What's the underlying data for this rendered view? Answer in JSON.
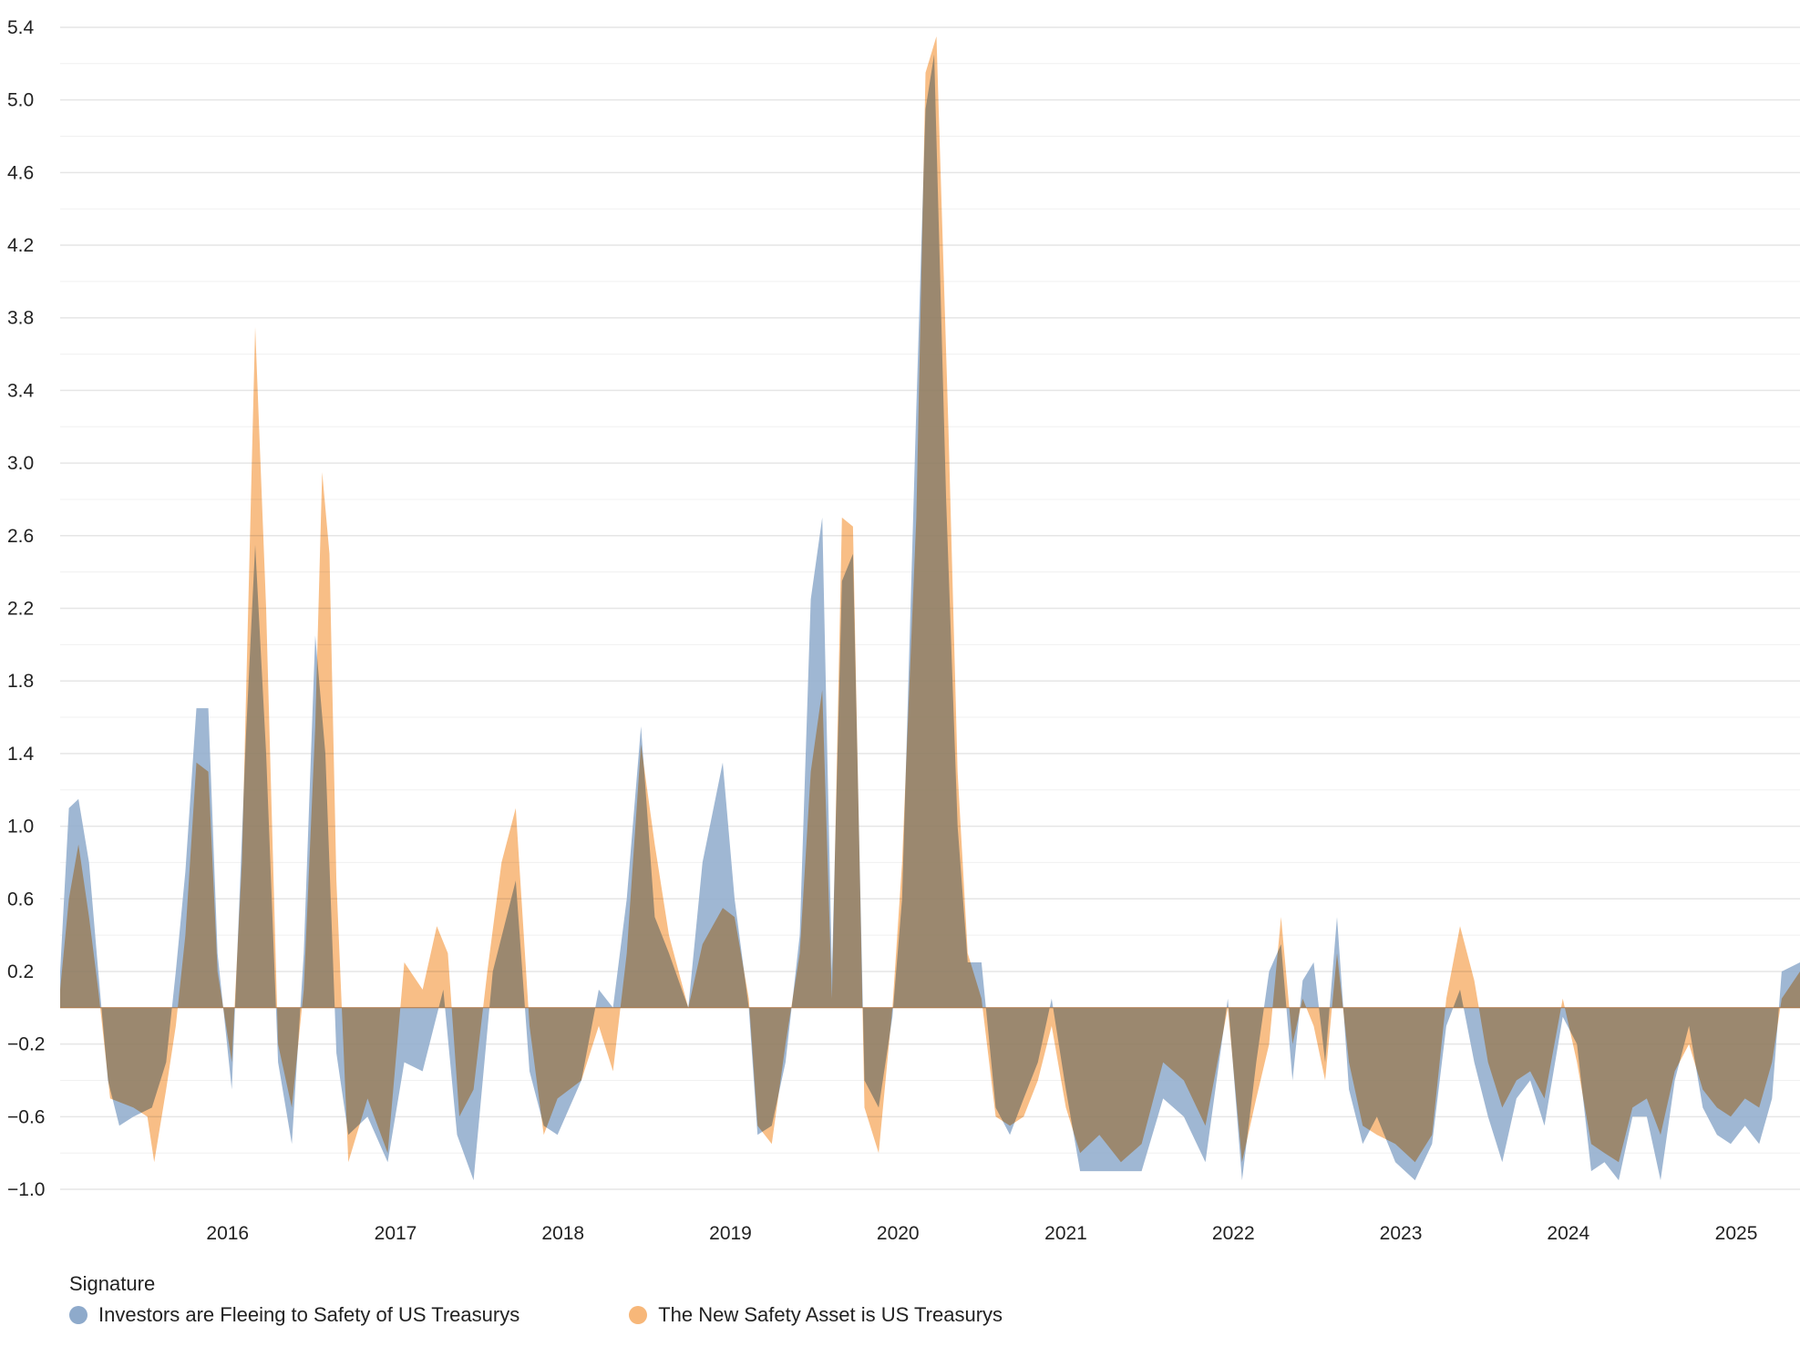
{
  "chart_data": {
    "type": "area",
    "title": "",
    "xlabel": "",
    "ylabel": "",
    "ylim": [
      -1.05,
      5.45
    ],
    "xlim": [
      "2015-01-01",
      "2025-05-20"
    ],
    "y_ticks": [
      -1.0,
      -0.6,
      -0.2,
      0.2,
      0.6,
      1.0,
      1.4,
      1.8,
      2.2,
      2.6,
      3.0,
      3.4,
      3.8,
      4.2,
      4.6,
      5.0,
      5.4
    ],
    "y_tick_labels": [
      "−1.0",
      "−0.6",
      "−0.2",
      "0.2",
      "0.6",
      "1.0",
      "1.4",
      "1.8",
      "2.2",
      "2.6",
      "3.0",
      "3.4",
      "3.8",
      "4.2",
      "4.6",
      "5.0",
      "5.4"
    ],
    "x_ticks": [
      "2016",
      "2017",
      "2018",
      "2019",
      "2020",
      "2021",
      "2022",
      "2023",
      "2024",
      "2025"
    ],
    "grid": "horizontal",
    "legend": {
      "title": "Signature",
      "placement": "bottom-left"
    },
    "series": [
      {
        "name": "Investors are Fleeing to Safety of US Treasurys",
        "color": "#8eaacb",
        "points": [
          [
            "2015-01-01",
            0.2
          ],
          [
            "2015-01-20",
            1.1
          ],
          [
            "2015-02-10",
            1.15
          ],
          [
            "2015-03-05",
            0.8
          ],
          [
            "2015-03-25",
            0.2
          ],
          [
            "2015-04-15",
            -0.4
          ],
          [
            "2015-05-10",
            -0.65
          ],
          [
            "2015-06-10",
            -0.6
          ],
          [
            "2015-07-20",
            -0.55
          ],
          [
            "2015-08-20",
            -0.3
          ],
          [
            "2015-09-10",
            0.2
          ],
          [
            "2015-10-01",
            0.75
          ],
          [
            "2015-10-25",
            1.65
          ],
          [
            "2015-11-20",
            1.65
          ],
          [
            "2015-12-10",
            0.3
          ],
          [
            "2016-01-10",
            -0.45
          ],
          [
            "2016-02-10",
            1.5
          ],
          [
            "2016-03-01",
            2.55
          ],
          [
            "2016-03-25",
            1.4
          ],
          [
            "2016-04-20",
            -0.3
          ],
          [
            "2016-05-20",
            -0.75
          ],
          [
            "2016-06-15",
            0.3
          ],
          [
            "2016-07-10",
            2.05
          ],
          [
            "2016-08-01",
            1.4
          ],
          [
            "2016-08-25",
            -0.25
          ],
          [
            "2016-09-20",
            -0.7
          ],
          [
            "2016-11-01",
            -0.6
          ],
          [
            "2016-12-15",
            -0.85
          ],
          [
            "2017-01-20",
            -0.3
          ],
          [
            "2017-03-01",
            -0.35
          ],
          [
            "2017-04-15",
            0.1
          ],
          [
            "2017-05-15",
            -0.7
          ],
          [
            "2017-06-20",
            -0.95
          ],
          [
            "2017-08-01",
            0.2
          ],
          [
            "2017-09-20",
            0.7
          ],
          [
            "2017-10-20",
            -0.35
          ],
          [
            "2017-11-20",
            -0.65
          ],
          [
            "2017-12-20",
            -0.7
          ],
          [
            "2018-02-10",
            -0.4
          ],
          [
            "2018-03-20",
            0.1
          ],
          [
            "2018-04-20",
            0.0
          ],
          [
            "2018-05-20",
            0.6
          ],
          [
            "2018-06-20",
            1.55
          ],
          [
            "2018-07-20",
            0.5
          ],
          [
            "2018-08-20",
            0.3
          ],
          [
            "2018-10-01",
            0.0
          ],
          [
            "2018-11-01",
            0.8
          ],
          [
            "2018-12-15",
            1.35
          ],
          [
            "2019-01-10",
            0.6
          ],
          [
            "2019-02-10",
            0.0
          ],
          [
            "2019-03-01",
            -0.7
          ],
          [
            "2019-04-01",
            -0.65
          ],
          [
            "2019-05-01",
            -0.3
          ],
          [
            "2019-06-01",
            0.4
          ],
          [
            "2019-06-25",
            2.25
          ],
          [
            "2019-07-20",
            2.7
          ],
          [
            "2019-08-10",
            0.2
          ],
          [
            "2019-09-01",
            2.35
          ],
          [
            "2019-09-25",
            2.5
          ],
          [
            "2019-10-20",
            -0.4
          ],
          [
            "2019-11-20",
            -0.55
          ],
          [
            "2019-12-20",
            -0.05
          ],
          [
            "2020-01-10",
            0.6
          ],
          [
            "2020-02-10",
            3.3
          ],
          [
            "2020-03-01",
            4.95
          ],
          [
            "2020-03-20",
            5.25
          ],
          [
            "2020-04-15",
            2.8
          ],
          [
            "2020-05-10",
            1.0
          ],
          [
            "2020-06-01",
            0.25
          ],
          [
            "2020-07-01",
            0.25
          ],
          [
            "2020-08-01",
            -0.55
          ],
          [
            "2020-09-01",
            -0.7
          ],
          [
            "2020-10-01",
            -0.5
          ],
          [
            "2020-11-01",
            -0.3
          ],
          [
            "2020-12-01",
            0.05
          ],
          [
            "2021-01-01",
            -0.45
          ],
          [
            "2021-02-01",
            -0.9
          ],
          [
            "2021-03-15",
            -0.9
          ],
          [
            "2021-05-01",
            -0.9
          ],
          [
            "2021-06-15",
            -0.9
          ],
          [
            "2021-08-01",
            -0.5
          ],
          [
            "2021-09-15",
            -0.6
          ],
          [
            "2021-11-01",
            -0.85
          ],
          [
            "2021-12-20",
            0.05
          ],
          [
            "2022-01-20",
            -0.95
          ],
          [
            "2022-02-20",
            -0.3
          ],
          [
            "2022-03-20",
            0.2
          ],
          [
            "2022-04-15",
            0.35
          ],
          [
            "2022-05-10",
            -0.4
          ],
          [
            "2022-06-01",
            0.15
          ],
          [
            "2022-06-25",
            0.25
          ],
          [
            "2022-07-20",
            -0.3
          ],
          [
            "2022-08-15",
            0.5
          ],
          [
            "2022-09-10",
            -0.45
          ],
          [
            "2022-10-10",
            -0.75
          ],
          [
            "2022-11-10",
            -0.6
          ],
          [
            "2022-12-20",
            -0.85
          ],
          [
            "2023-02-01",
            -0.95
          ],
          [
            "2023-03-10",
            -0.75
          ],
          [
            "2023-04-10",
            -0.1
          ],
          [
            "2023-05-10",
            0.1
          ],
          [
            "2023-06-10",
            -0.3
          ],
          [
            "2023-07-10",
            -0.6
          ],
          [
            "2023-08-10",
            -0.85
          ],
          [
            "2023-09-10",
            -0.5
          ],
          [
            "2023-10-10",
            -0.4
          ],
          [
            "2023-11-10",
            -0.65
          ],
          [
            "2023-12-20",
            -0.05
          ],
          [
            "2024-01-20",
            -0.2
          ],
          [
            "2024-02-20",
            -0.9
          ],
          [
            "2024-03-20",
            -0.85
          ],
          [
            "2024-04-20",
            -0.95
          ],
          [
            "2024-05-20",
            -0.6
          ],
          [
            "2024-06-20",
            -0.6
          ],
          [
            "2024-07-20",
            -0.95
          ],
          [
            "2024-08-20",
            -0.4
          ],
          [
            "2024-09-20",
            -0.1
          ],
          [
            "2024-10-20",
            -0.55
          ],
          [
            "2024-11-20",
            -0.7
          ],
          [
            "2024-12-20",
            -0.75
          ],
          [
            "2025-01-20",
            -0.65
          ],
          [
            "2025-02-20",
            -0.75
          ],
          [
            "2025-03-20",
            -0.5
          ],
          [
            "2025-04-10",
            0.2
          ],
          [
            "2025-05-20",
            0.25
          ]
        ]
      },
      {
        "name": "The New Safety Asset is US Treasurys",
        "color": "#f7b779",
        "points": [
          [
            "2015-01-01",
            0.1
          ],
          [
            "2015-01-20",
            0.6
          ],
          [
            "2015-02-10",
            0.9
          ],
          [
            "2015-03-05",
            0.5
          ],
          [
            "2015-03-25",
            0.1
          ],
          [
            "2015-04-20",
            -0.5
          ],
          [
            "2015-06-10",
            -0.55
          ],
          [
            "2015-07-10",
            -0.6
          ],
          [
            "2015-07-25",
            -0.85
          ],
          [
            "2015-08-20",
            -0.45
          ],
          [
            "2015-09-10",
            -0.1
          ],
          [
            "2015-10-01",
            0.4
          ],
          [
            "2015-10-25",
            1.35
          ],
          [
            "2015-11-20",
            1.3
          ],
          [
            "2015-12-10",
            0.2
          ],
          [
            "2016-01-10",
            -0.3
          ],
          [
            "2016-02-01",
            0.8
          ],
          [
            "2016-03-01",
            3.75
          ],
          [
            "2016-03-25",
            2.2
          ],
          [
            "2016-04-20",
            -0.2
          ],
          [
            "2016-05-20",
            -0.55
          ],
          [
            "2016-06-15",
            0.1
          ],
          [
            "2016-07-10",
            1.55
          ],
          [
            "2016-07-25",
            2.95
          ],
          [
            "2016-08-10",
            2.5
          ],
          [
            "2016-08-25",
            0.7
          ],
          [
            "2016-09-20",
            -0.85
          ],
          [
            "2016-11-01",
            -0.5
          ],
          [
            "2016-12-15",
            -0.8
          ],
          [
            "2017-01-20",
            0.25
          ],
          [
            "2017-03-01",
            0.1
          ],
          [
            "2017-04-01",
            0.45
          ],
          [
            "2017-04-25",
            0.3
          ],
          [
            "2017-05-20",
            -0.6
          ],
          [
            "2017-06-20",
            -0.45
          ],
          [
            "2017-07-20",
            0.2
          ],
          [
            "2017-08-20",
            0.8
          ],
          [
            "2017-09-20",
            1.1
          ],
          [
            "2017-10-20",
            -0.1
          ],
          [
            "2017-11-20",
            -0.7
          ],
          [
            "2017-12-20",
            -0.5
          ],
          [
            "2018-02-10",
            -0.4
          ],
          [
            "2018-03-20",
            -0.1
          ],
          [
            "2018-04-20",
            -0.35
          ],
          [
            "2018-05-20",
            0.3
          ],
          [
            "2018-06-20",
            1.45
          ],
          [
            "2018-07-20",
            0.9
          ],
          [
            "2018-08-20",
            0.4
          ],
          [
            "2018-10-01",
            0.0
          ],
          [
            "2018-11-01",
            0.35
          ],
          [
            "2018-12-15",
            0.55
          ],
          [
            "2019-01-10",
            0.5
          ],
          [
            "2019-02-10",
            0.05
          ],
          [
            "2019-03-01",
            -0.65
          ],
          [
            "2019-04-01",
            -0.75
          ],
          [
            "2019-05-01",
            -0.2
          ],
          [
            "2019-06-01",
            0.3
          ],
          [
            "2019-06-25",
            1.3
          ],
          [
            "2019-07-20",
            1.75
          ],
          [
            "2019-08-10",
            0.05
          ],
          [
            "2019-09-01",
            2.7
          ],
          [
            "2019-09-25",
            2.65
          ],
          [
            "2019-10-20",
            -0.55
          ],
          [
            "2019-11-20",
            -0.8
          ],
          [
            "2019-12-20",
            0.0
          ],
          [
            "2020-01-10",
            0.8
          ],
          [
            "2020-02-10",
            2.7
          ],
          [
            "2020-03-01",
            5.15
          ],
          [
            "2020-03-25",
            5.35
          ],
          [
            "2020-04-20",
            3.2
          ],
          [
            "2020-05-10",
            1.3
          ],
          [
            "2020-06-01",
            0.3
          ],
          [
            "2020-07-01",
            0.05
          ],
          [
            "2020-08-01",
            -0.6
          ],
          [
            "2020-09-01",
            -0.65
          ],
          [
            "2020-10-01",
            -0.6
          ],
          [
            "2020-11-01",
            -0.4
          ],
          [
            "2020-12-01",
            -0.1
          ],
          [
            "2021-01-01",
            -0.55
          ],
          [
            "2021-02-01",
            -0.8
          ],
          [
            "2021-03-15",
            -0.7
          ],
          [
            "2021-05-01",
            -0.85
          ],
          [
            "2021-06-15",
            -0.75
          ],
          [
            "2021-08-01",
            -0.3
          ],
          [
            "2021-09-15",
            -0.4
          ],
          [
            "2021-11-01",
            -0.65
          ],
          [
            "2021-12-20",
            0.0
          ],
          [
            "2022-01-20",
            -0.85
          ],
          [
            "2022-02-20",
            -0.5
          ],
          [
            "2022-03-20",
            -0.2
          ],
          [
            "2022-04-15",
            0.5
          ],
          [
            "2022-05-10",
            -0.2
          ],
          [
            "2022-06-01",
            0.05
          ],
          [
            "2022-06-25",
            -0.1
          ],
          [
            "2022-07-20",
            -0.4
          ],
          [
            "2022-08-15",
            0.3
          ],
          [
            "2022-09-10",
            -0.3
          ],
          [
            "2022-10-10",
            -0.65
          ],
          [
            "2022-11-10",
            -0.7
          ],
          [
            "2022-12-20",
            -0.75
          ],
          [
            "2023-02-01",
            -0.85
          ],
          [
            "2023-03-10",
            -0.7
          ],
          [
            "2023-04-10",
            0.05
          ],
          [
            "2023-05-10",
            0.45
          ],
          [
            "2023-06-10",
            0.15
          ],
          [
            "2023-07-10",
            -0.3
          ],
          [
            "2023-08-10",
            -0.55
          ],
          [
            "2023-09-10",
            -0.4
          ],
          [
            "2023-10-10",
            -0.35
          ],
          [
            "2023-11-10",
            -0.5
          ],
          [
            "2023-12-20",
            0.05
          ],
          [
            "2024-01-20",
            -0.3
          ],
          [
            "2024-02-20",
            -0.75
          ],
          [
            "2024-03-20",
            -0.8
          ],
          [
            "2024-04-20",
            -0.85
          ],
          [
            "2024-05-20",
            -0.55
          ],
          [
            "2024-06-20",
            -0.5
          ],
          [
            "2024-07-20",
            -0.7
          ],
          [
            "2024-08-20",
            -0.35
          ],
          [
            "2024-09-20",
            -0.2
          ],
          [
            "2024-10-20",
            -0.45
          ],
          [
            "2024-11-20",
            -0.55
          ],
          [
            "2024-12-20",
            -0.6
          ],
          [
            "2025-01-20",
            -0.5
          ],
          [
            "2025-02-20",
            -0.55
          ],
          [
            "2025-03-20",
            -0.3
          ],
          [
            "2025-04-10",
            0.05
          ],
          [
            "2025-05-20",
            0.2
          ]
        ]
      }
    ]
  }
}
